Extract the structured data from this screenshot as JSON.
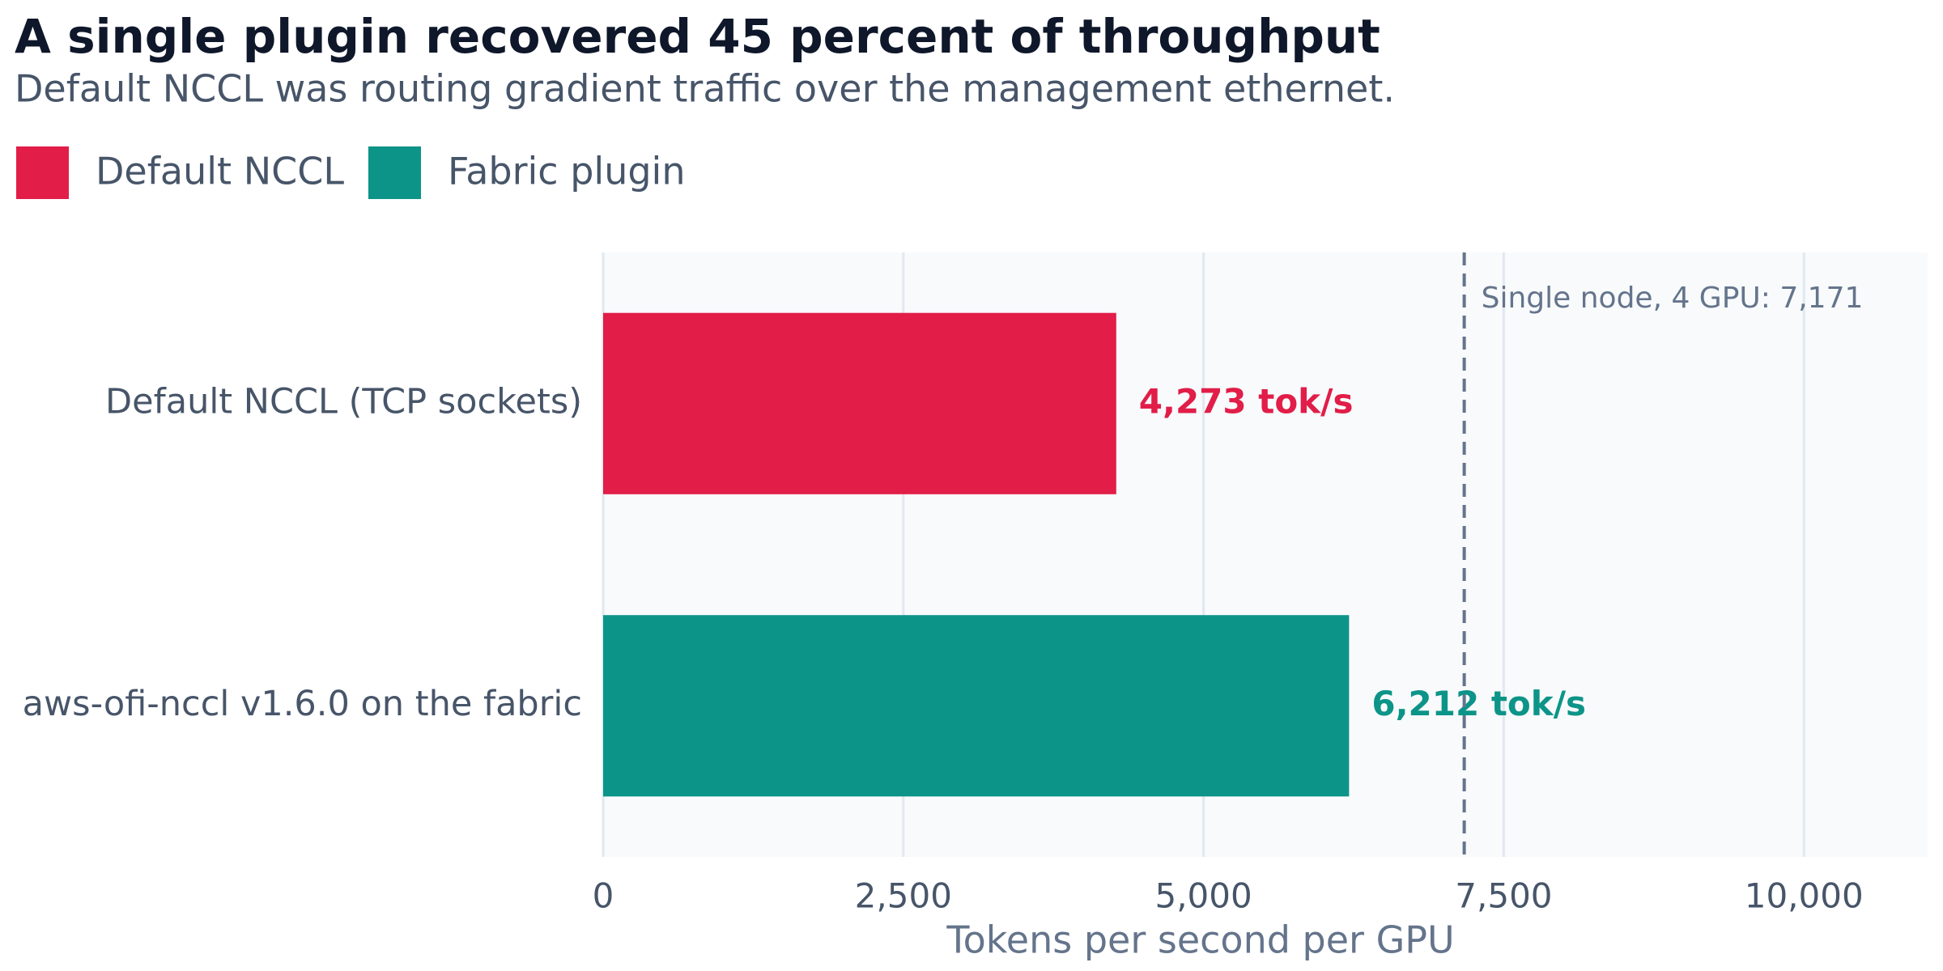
{
  "chart_data": {
    "type": "bar",
    "orientation": "horizontal",
    "title": "A single plugin recovered 45 percent of throughput",
    "subtitle": "Default NCCL was routing gradient traffic over the management ethernet.",
    "categories": [
      "Default NCCL (TCP sockets)",
      "aws-ofi-nccl v1.6.0 on the fabric"
    ],
    "series": [
      {
        "name": "Default NCCL",
        "color": "#e11d48",
        "values": [
          4273,
          null
        ],
        "value_labels": [
          "4,273 tok/s",
          null
        ]
      },
      {
        "name": "Fabric plugin",
        "color": "#0d9488",
        "values": [
          null,
          6212
        ],
        "value_labels": [
          null,
          "6,212 tok/s"
        ]
      }
    ],
    "xlabel": "Tokens per second per GPU",
    "xlim": [
      0,
      11030
    ],
    "xticks": [
      0,
      {
        "value": 2500,
        "label": "2,500"
      },
      {
        "value": 5000,
        "label": "5,000"
      },
      {
        "value": 7500,
        "label": "7,500"
      },
      {
        "value": 10000,
        "label": "10,000"
      }
    ],
    "grid": true,
    "reference_line": {
      "value": 7171,
      "label": "Single node, 4 GPU: 7,171"
    }
  }
}
